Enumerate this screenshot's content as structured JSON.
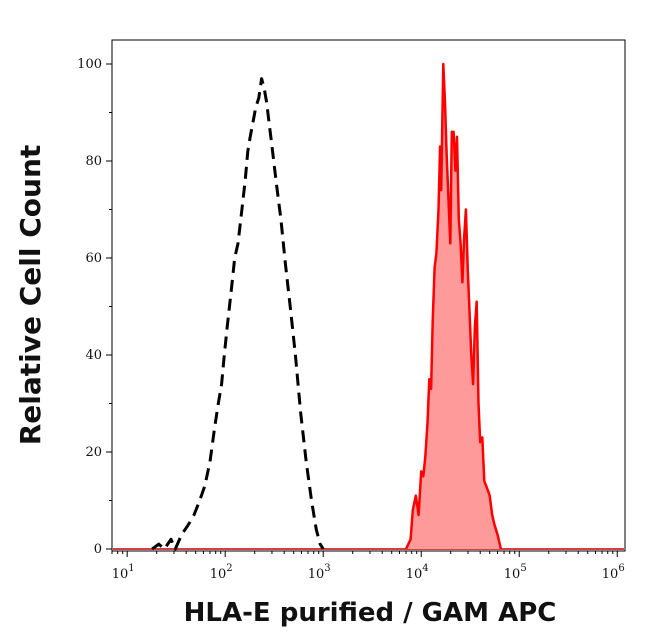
{
  "chart_data": {
    "type": "area",
    "title": "",
    "xlabel": "HLA-E purified / GAM APC",
    "ylabel": "Relative Cell Count",
    "xscale": "log",
    "xlim": [
      7,
      1200000
    ],
    "ylim": [
      0,
      100
    ],
    "yticks": [
      {
        "value": 0,
        "label": "0"
      },
      {
        "value": 20,
        "label": "20"
      },
      {
        "value": 40,
        "label": "40"
      },
      {
        "value": 60,
        "label": "60"
      },
      {
        "value": 80,
        "label": "80"
      },
      {
        "value": 100,
        "label": "100"
      }
    ],
    "xticks": [
      {
        "value": 10,
        "base": "10",
        "exp": "1"
      },
      {
        "value": 100,
        "base": "10",
        "exp": "2"
      },
      {
        "value": 1000,
        "base": "10",
        "exp": "3"
      },
      {
        "value": 10000,
        "base": "10",
        "exp": "4"
      },
      {
        "value": 100000,
        "base": "10",
        "exp": "5"
      },
      {
        "value": 1000000,
        "base": "10",
        "exp": "6"
      }
    ],
    "grid": false,
    "series": [
      {
        "style": "dashed-line",
        "color": "#000000",
        "points": [
          [
            18,
            0
          ],
          [
            21,
            1
          ],
          [
            24,
            0
          ],
          [
            28,
            2
          ],
          [
            31,
            0
          ],
          [
            36,
            3
          ],
          [
            42,
            5
          ],
          [
            48,
            7
          ],
          [
            55,
            10
          ],
          [
            62,
            13
          ],
          [
            70,
            18
          ],
          [
            78,
            25
          ],
          [
            85,
            30
          ],
          [
            92,
            34
          ],
          [
            98,
            40
          ],
          [
            105,
            46
          ],
          [
            115,
            53
          ],
          [
            125,
            60
          ],
          [
            135,
            63
          ],
          [
            148,
            70
          ],
          [
            160,
            76
          ],
          [
            170,
            82
          ],
          [
            180,
            85
          ],
          [
            192,
            88
          ],
          [
            205,
            91
          ],
          [
            220,
            93
          ],
          [
            235,
            97
          ],
          [
            250,
            95
          ],
          [
            265,
            92
          ],
          [
            280,
            88
          ],
          [
            300,
            83
          ],
          [
            330,
            76
          ],
          [
            370,
            68
          ],
          [
            410,
            59
          ],
          [
            460,
            50
          ],
          [
            520,
            40
          ],
          [
            590,
            28
          ],
          [
            670,
            18
          ],
          [
            760,
            10
          ],
          [
            850,
            4
          ],
          [
            930,
            1
          ],
          [
            1000,
            0
          ]
        ]
      },
      {
        "style": "filled",
        "color": "#ff0000",
        "fill": "#ff9a9a",
        "points": [
          [
            7000,
            0
          ],
          [
            7800,
            2
          ],
          [
            8200,
            8
          ],
          [
            8800,
            11
          ],
          [
            9400,
            7
          ],
          [
            10000,
            16
          ],
          [
            10500,
            15
          ],
          [
            11000,
            19
          ],
          [
            11600,
            26
          ],
          [
            12100,
            35
          ],
          [
            12600,
            33
          ],
          [
            13100,
            47
          ],
          [
            13700,
            58
          ],
          [
            14300,
            61
          ],
          [
            15000,
            70
          ],
          [
            15600,
            83
          ],
          [
            16000,
            74
          ],
          [
            16800,
            100
          ],
          [
            17500,
            92
          ],
          [
            18200,
            81
          ],
          [
            19000,
            72
          ],
          [
            19800,
            63
          ],
          [
            20500,
            86
          ],
          [
            21400,
            86
          ],
          [
            22300,
            78
          ],
          [
            23200,
            85
          ],
          [
            24200,
            68
          ],
          [
            25200,
            63
          ],
          [
            26300,
            55
          ],
          [
            27400,
            64
          ],
          [
            28600,
            70
          ],
          [
            29800,
            58
          ],
          [
            31100,
            49
          ],
          [
            32400,
            40
          ],
          [
            33800,
            34
          ],
          [
            35300,
            46
          ],
          [
            36800,
            51
          ],
          [
            38400,
            30
          ],
          [
            40000,
            22
          ],
          [
            42000,
            23
          ],
          [
            44000,
            14
          ],
          [
            46000,
            13
          ],
          [
            48000,
            12
          ],
          [
            50000,
            11
          ],
          [
            53000,
            7
          ],
          [
            56000,
            5
          ],
          [
            60000,
            3
          ],
          [
            65000,
            0
          ]
        ]
      }
    ]
  }
}
